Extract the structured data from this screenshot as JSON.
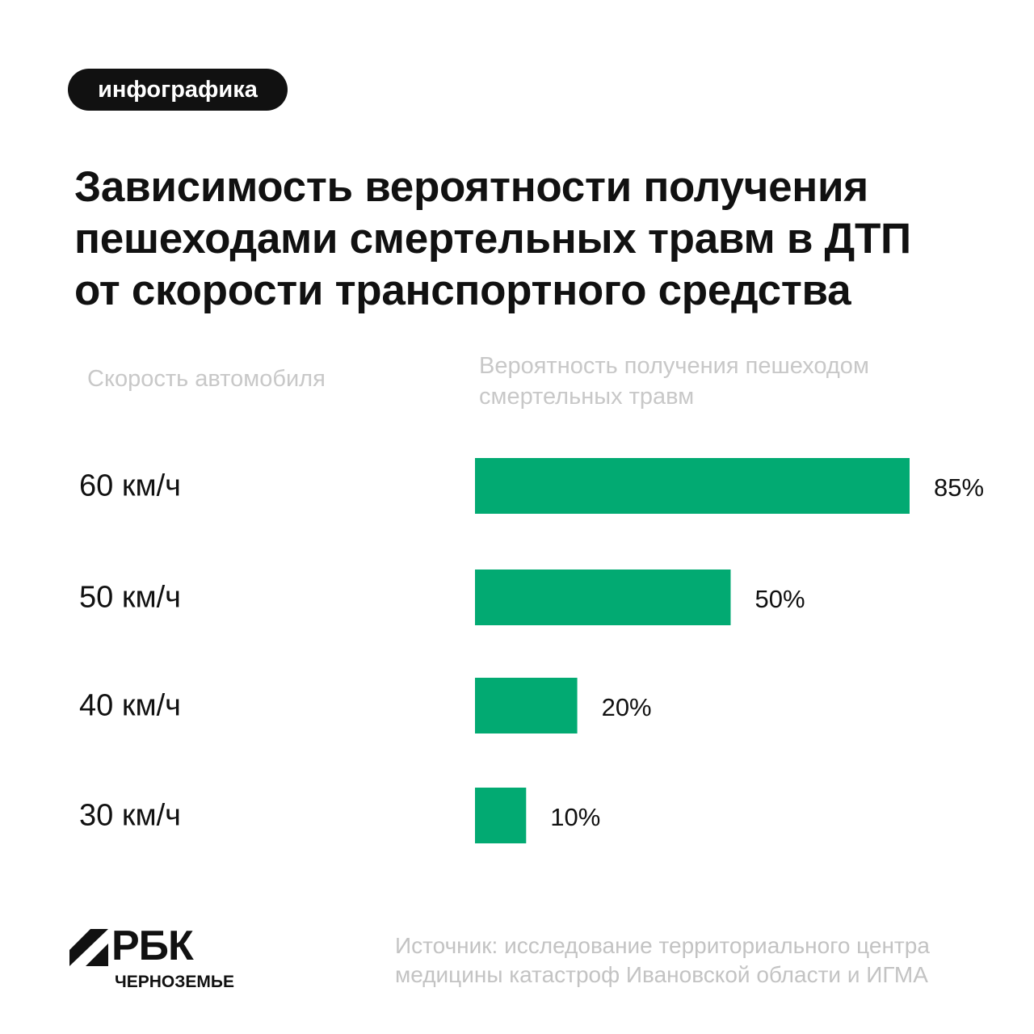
{
  "tag": "инфографика",
  "title_lines": [
    "Зависимость вероятности получения",
    "пешеходами смертельных травм в ДТП",
    "от скорости транспортного средства"
  ],
  "column_headers": {
    "speed": "Скорость автомобиля",
    "probability_lines": [
      "Вероятность получения пешеходом",
      "смертельных травм"
    ]
  },
  "colors": {
    "bar": "#02aa72",
    "text": "#111111",
    "muted": "#c8c8c8"
  },
  "chart_data": {
    "type": "bar",
    "orientation": "horizontal",
    "categories": [
      "60 км/ч",
      "50 км/ч",
      "40 км/ч",
      "30 км/ч"
    ],
    "values": [
      85,
      50,
      20,
      10
    ],
    "value_labels": [
      "85%",
      "50%",
      "20%",
      "10%"
    ],
    "unit": "%",
    "xlim": [
      0,
      85
    ],
    "grid": false,
    "legend": "none"
  },
  "logo": {
    "word": "РБК",
    "sub": "ЧЕРНОЗЕМЬЕ"
  },
  "source_lines": [
    "Источник: исследование территориального центра",
    "медицины катастроф Ивановской области и ИГМА"
  ]
}
